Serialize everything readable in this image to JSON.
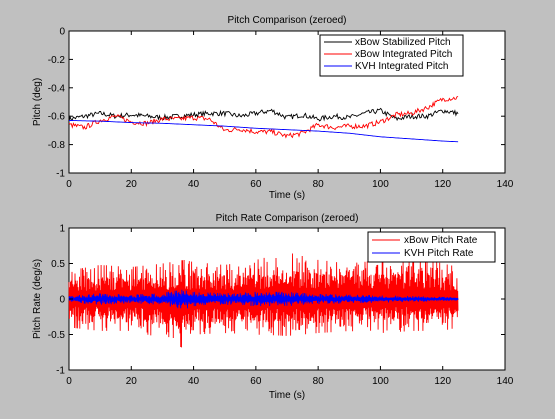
{
  "figure": {
    "background": "#c0c0c0",
    "axes_background": "#ffffff"
  },
  "chart_data": [
    {
      "type": "line",
      "title": "Pitch Comparison (zeroed)",
      "xlabel": "Time (s)",
      "ylabel": "Pitch (deg)",
      "xlim": [
        0,
        140
      ],
      "ylim": [
        -1,
        0
      ],
      "xticks": [
        0,
        20,
        40,
        60,
        80,
        100,
        120,
        140
      ],
      "yticks": [
        -1,
        -0.8,
        -0.6,
        -0.4,
        -0.2,
        0
      ],
      "xtick_labels": [
        "0",
        "20",
        "40",
        "60",
        "80",
        "100",
        "120",
        "140"
      ],
      "ytick_labels": [
        "-1",
        "-0.8",
        "-0.6",
        "-0.4",
        "-0.2",
        "0"
      ],
      "grid": false,
      "legend_position": "top-right",
      "series": [
        {
          "name": "xBow Stabilized Pitch",
          "color": "#000000",
          "x": [
            0,
            5,
            10,
            15,
            20,
            25,
            30,
            35,
            40,
            45,
            50,
            55,
            60,
            65,
            70,
            75,
            80,
            85,
            90,
            95,
            100,
            105,
            110,
            115,
            120,
            125
          ],
          "y": [
            -0.62,
            -0.6,
            -0.58,
            -0.6,
            -0.59,
            -0.6,
            -0.61,
            -0.6,
            -0.59,
            -0.58,
            -0.58,
            -0.6,
            -0.58,
            -0.56,
            -0.61,
            -0.59,
            -0.62,
            -0.6,
            -0.61,
            -0.58,
            -0.56,
            -0.62,
            -0.6,
            -0.6,
            -0.56,
            -0.58
          ]
        },
        {
          "name": "xBow Integrated Pitch",
          "color": "#ff0000",
          "x": [
            0,
            5,
            10,
            15,
            20,
            25,
            30,
            35,
            40,
            45,
            50,
            55,
            60,
            65,
            70,
            75,
            80,
            85,
            90,
            95,
            100,
            105,
            110,
            115,
            120,
            125
          ],
          "y": [
            -0.66,
            -0.68,
            -0.63,
            -0.6,
            -0.64,
            -0.65,
            -0.62,
            -0.62,
            -0.61,
            -0.62,
            -0.7,
            -0.69,
            -0.71,
            -0.71,
            -0.74,
            -0.72,
            -0.66,
            -0.68,
            -0.67,
            -0.67,
            -0.64,
            -0.59,
            -0.58,
            -0.54,
            -0.48,
            -0.47
          ]
        },
        {
          "name": "KVH Integrated Pitch",
          "color": "#0000ff",
          "x": [
            0,
            10,
            20,
            30,
            40,
            50,
            60,
            70,
            80,
            90,
            100,
            110,
            120,
            125
          ],
          "y": [
            -0.63,
            -0.635,
            -0.645,
            -0.65,
            -0.66,
            -0.67,
            -0.685,
            -0.695,
            -0.705,
            -0.72,
            -0.745,
            -0.76,
            -0.775,
            -0.78
          ]
        }
      ]
    },
    {
      "type": "line",
      "title": "Pitch Rate Comparison (zeroed)",
      "xlabel": "Time (s)",
      "ylabel": "Pitch Rate (deg/s)",
      "xlim": [
        0,
        140
      ],
      "ylim": [
        -1,
        1
      ],
      "xticks": [
        0,
        20,
        40,
        60,
        80,
        100,
        120,
        140
      ],
      "yticks": [
        -1,
        -0.5,
        0,
        0.5,
        1
      ],
      "xtick_labels": [
        "0",
        "20",
        "40",
        "60",
        "80",
        "100",
        "120",
        "140"
      ],
      "ytick_labels": [
        "-1",
        "-0.5",
        "0",
        "0.5",
        "1"
      ],
      "grid": false,
      "legend_position": "top-right",
      "series": [
        {
          "name": "xBow Pitch Rate",
          "color": "#ff0000",
          "x": [
            0,
            10,
            20,
            30,
            37,
            40,
            50,
            60,
            70,
            80,
            90,
            100,
            110,
            120,
            125
          ],
          "y_max": [
            0.4,
            0.48,
            0.45,
            0.5,
            0.55,
            0.52,
            0.48,
            0.55,
            0.66,
            0.55,
            0.5,
            0.55,
            0.6,
            0.5,
            0.45
          ],
          "y_min": [
            -0.4,
            -0.45,
            -0.45,
            -0.55,
            -0.7,
            -0.5,
            -0.48,
            -0.5,
            -0.52,
            -0.48,
            -0.45,
            -0.48,
            -0.45,
            -0.45,
            -0.4
          ]
        },
        {
          "name": "KVH Pitch Rate",
          "color": "#0000ff",
          "x": [
            0,
            10,
            20,
            30,
            37,
            40,
            50,
            60,
            70,
            80,
            90,
            100,
            110,
            120,
            125
          ],
          "y_max": [
            0.05,
            0.08,
            0.06,
            0.08,
            0.16,
            0.1,
            0.08,
            0.1,
            0.1,
            0.07,
            0.06,
            0.05,
            0.04,
            0.03,
            0.02
          ],
          "y_min": [
            -0.05,
            -0.08,
            -0.06,
            -0.08,
            -0.15,
            -0.1,
            -0.08,
            -0.1,
            -0.1,
            -0.07,
            -0.06,
            -0.05,
            -0.04,
            -0.03,
            -0.02
          ]
        }
      ]
    }
  ]
}
